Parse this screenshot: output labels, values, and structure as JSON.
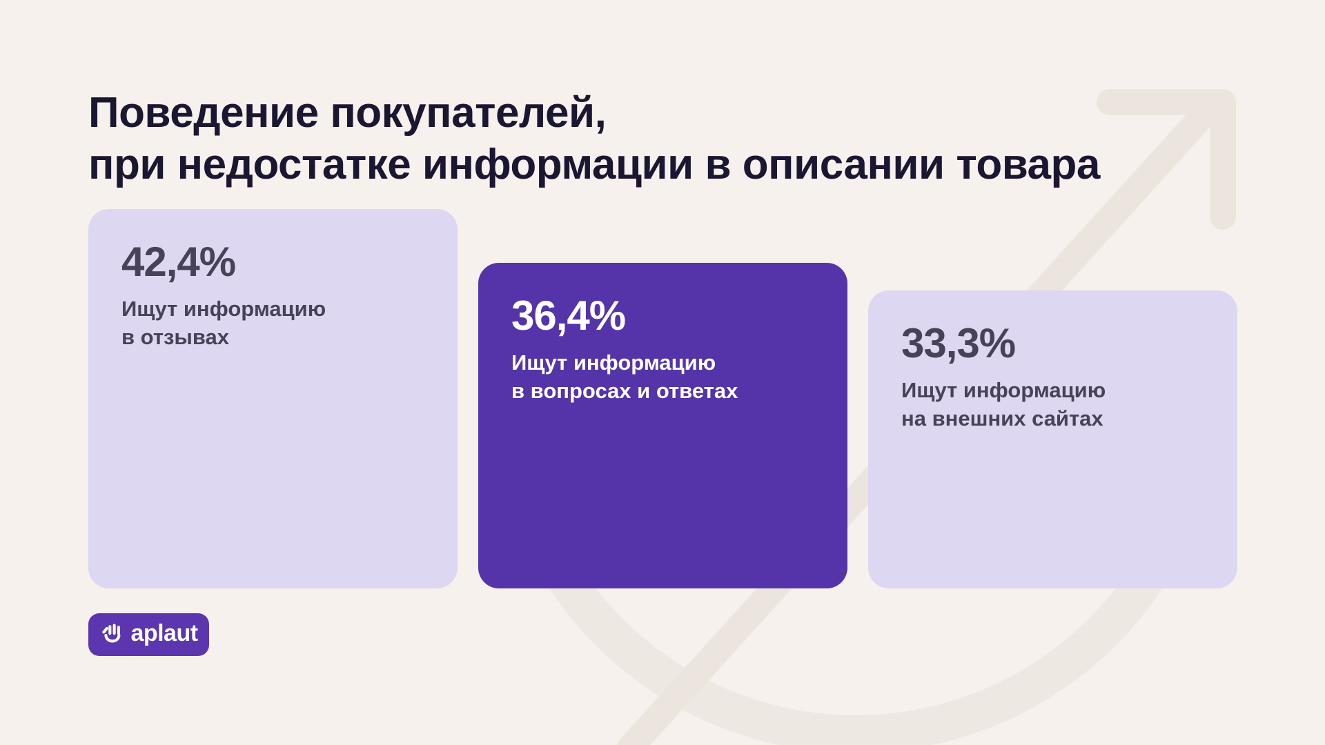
{
  "title": {
    "line1": "Поведение покупателей,",
    "line2": "при недостатке информации в описании товара"
  },
  "chart_data": {
    "type": "bar",
    "title": "Поведение покупателей, при недостатке информации в описании товара",
    "categories": [
      "Ищут информацию в отзывах",
      "Ищут информацию в вопросах и ответах",
      "Ищут информацию на внешних сайтах"
    ],
    "values": [
      42.4,
      36.4,
      33.3
    ],
    "value_labels": [
      "42,4%",
      "36,4%",
      "33,3%"
    ],
    "unit": "%",
    "orientation": "vertical",
    "bars_bottom_aligned": true,
    "highlight_index": 1,
    "legend": "none",
    "grid": "off"
  },
  "cards": [
    {
      "percent": "42,4%",
      "label": "Ищут информацию\nв отзывах",
      "variant": "light"
    },
    {
      "percent": "36,4%",
      "label": "Ищут информацию\nв вопросах и ответах",
      "variant": "dark"
    },
    {
      "percent": "33,3%",
      "label": "Ищут информацию\nна внешних сайтах",
      "variant": "light"
    }
  ],
  "logo": {
    "text": "aplaut"
  },
  "colors": {
    "background": "#f6f1ec",
    "card_light": "#ded7f1",
    "card_dark": "#5434a8",
    "title_text": "#1b1631",
    "stat_text": "#484157",
    "text_on_dark": "#ffffff",
    "logo_background": "#5b36ae",
    "watermark": "#ece5de",
    "watermark_soft": "#eee8e2"
  }
}
